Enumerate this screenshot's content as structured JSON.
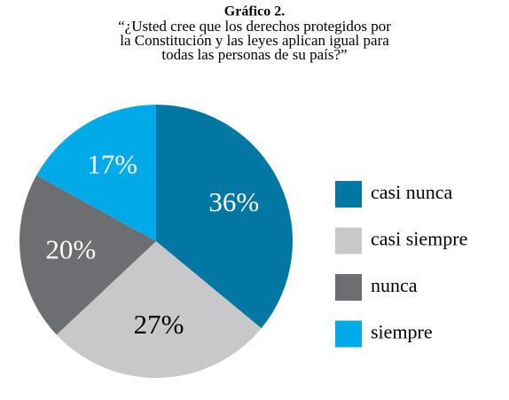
{
  "chart_data": {
    "type": "pie",
    "title": "Gráfico 2.",
    "subtitle": [
      "“¿Usted cree que los derechos protegidos por",
      "la Constitución y las leyes aplican igual para",
      "todas las personas de su país?”"
    ],
    "categories": [
      "casi nunca",
      "casi siempre",
      "nunca",
      "siempre"
    ],
    "values": [
      36,
      27,
      20,
      17
    ],
    "value_labels": [
      "36%",
      "27%",
      "20%",
      "17%"
    ],
    "colors": [
      "#0277a3",
      "#c8c8ca",
      "#6d6e71",
      "#00a9e8"
    ],
    "label_colors": [
      "#ffffff",
      "#000000",
      "#ffffff",
      "#ffffff"
    ],
    "legend": "right"
  }
}
